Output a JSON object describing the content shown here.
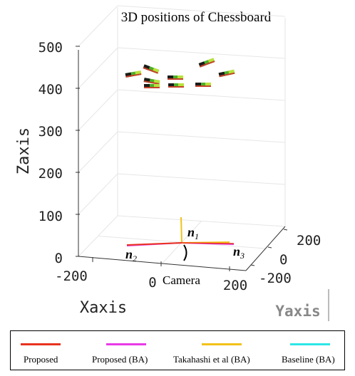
{
  "chart_data": {
    "type": "scatter",
    "title": "3D positions of Chessboard",
    "xlabel": "Xaxis",
    "ylabel": "Yaxis",
    "zlabel": "Zaxis",
    "x_ticks": [
      "-200",
      "0",
      "200"
    ],
    "y_ticks": [
      "200",
      "0",
      "-200"
    ],
    "z_ticks": [
      "0",
      "100",
      "200",
      "300",
      "400",
      "500"
    ],
    "zlim": [
      0,
      500
    ],
    "grid": true,
    "legend_position": "bottom",
    "camera_label": "Camera",
    "normals": [
      {
        "symbol": "n",
        "sub": "1"
      },
      {
        "symbol": "n",
        "sub": "2"
      },
      {
        "symbol": "n",
        "sub": "3"
      }
    ],
    "series": [
      {
        "name": "Proposed",
        "color": "#e8331f"
      },
      {
        "name": "Proposed (BA)",
        "color": "#e83ae8"
      },
      {
        "name": "Takahashi et al (BA)",
        "color": "#f2c21a"
      },
      {
        "name": "Baseline (BA)",
        "color": "#2ee6e6"
      }
    ]
  }
}
